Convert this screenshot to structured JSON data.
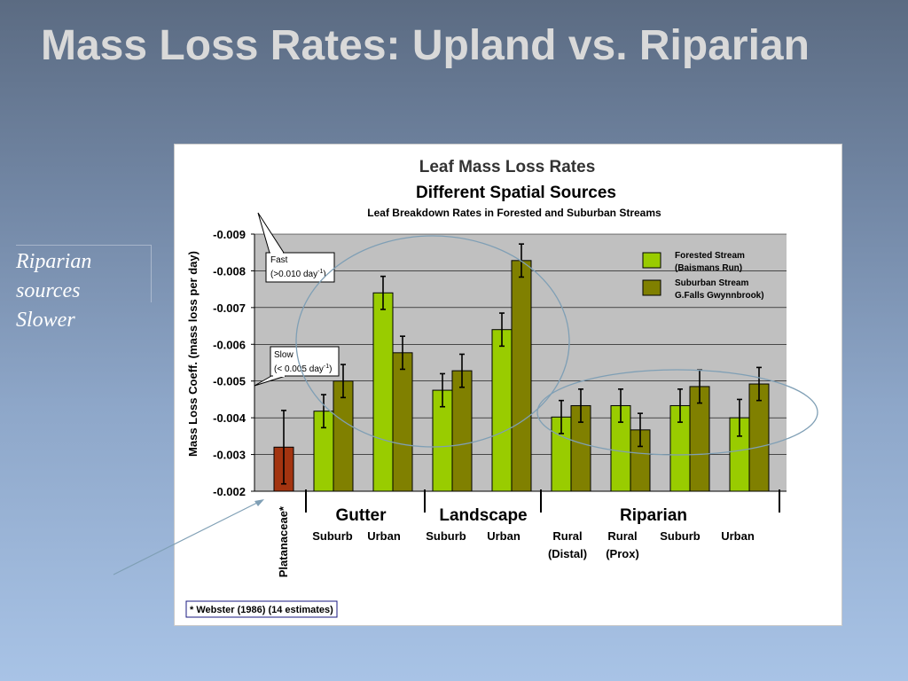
{
  "slide": {
    "title": "Mass Loss Rates: Upland vs. Riparian",
    "side_note_lines": [
      "Riparian",
      "sources",
      "Slower"
    ]
  },
  "chart_data": {
    "type": "bar",
    "title": "Leaf Mass Loss Rates",
    "subtitle": "Different Spatial Sources",
    "subsubtitle": "Leaf Breakdown Rates in Forested and Suburban Streams",
    "ylabel": "Mass Loss Coeff. (mass loss per day)",
    "ylim": [
      -0.002,
      -0.009
    ],
    "yticks": [
      "-0.009",
      "-0.008",
      "-0.007",
      "-0.006",
      "-0.005",
      "-0.004",
      "-0.003",
      "-0.002"
    ],
    "grid": true,
    "legend_position": "top-right",
    "single_bar": {
      "label": "Platanaceae*",
      "value": -0.0032,
      "error": 0.001,
      "color": "#a33410"
    },
    "categories": [
      "Gutter Suburb",
      "Gutter Urban",
      "Landscape Suburb",
      "Landscape Urban",
      "Riparian Rural (Distal)",
      "Riparian Rural (Prox)",
      "Riparian Suburb",
      "Riparian Urban"
    ],
    "series": [
      {
        "name": "Forested Stream (Baismans Run)",
        "legend_lines": [
          "Forested Stream",
          "(Baismans Run)"
        ],
        "color": "#99cc00",
        "values": [
          -0.00418,
          -0.0074,
          -0.00475,
          -0.0064,
          -0.00402,
          -0.00433,
          -0.00433,
          -0.004
        ],
        "errors": [
          0.00045,
          0.00045,
          0.00045,
          0.00045,
          0.00045,
          0.00045,
          0.00045,
          0.0005
        ]
      },
      {
        "name": "Suburban Stream G.Falls Gwynnbrook)",
        "legend_lines": [
          "Suburban Stream",
          "G.Falls Gwynnbrook)"
        ],
        "color": "#808000",
        "values": [
          -0.005,
          -0.00577,
          -0.00528,
          -0.00828,
          -0.00433,
          -0.00367,
          -0.00485,
          -0.00492
        ],
        "errors": [
          0.00045,
          0.00045,
          0.00045,
          0.00045,
          0.00045,
          0.00045,
          0.00045,
          0.00045
        ]
      }
    ],
    "group_labels": [
      "Gutter",
      "Landscape",
      "Riparian"
    ],
    "sub_labels": [
      "Suburb",
      "Urban",
      "Suburb",
      "Urban",
      "Rural",
      "Rural",
      "Suburb",
      "Urban"
    ],
    "sub_labels_line2": [
      "",
      "",
      "",
      "",
      "(Distal)",
      "(Prox)",
      "",
      ""
    ],
    "callouts": [
      {
        "name": "fast",
        "label": "Fast",
        "text": "(>0.010 day",
        "sup": "-1",
        "close": ")"
      },
      {
        "name": "slow",
        "label": "Slow",
        "text": "(< 0.005 day",
        "sup": "-1",
        "close": ")"
      }
    ],
    "footnote": "* Webster (1986) (14 estimates)"
  }
}
